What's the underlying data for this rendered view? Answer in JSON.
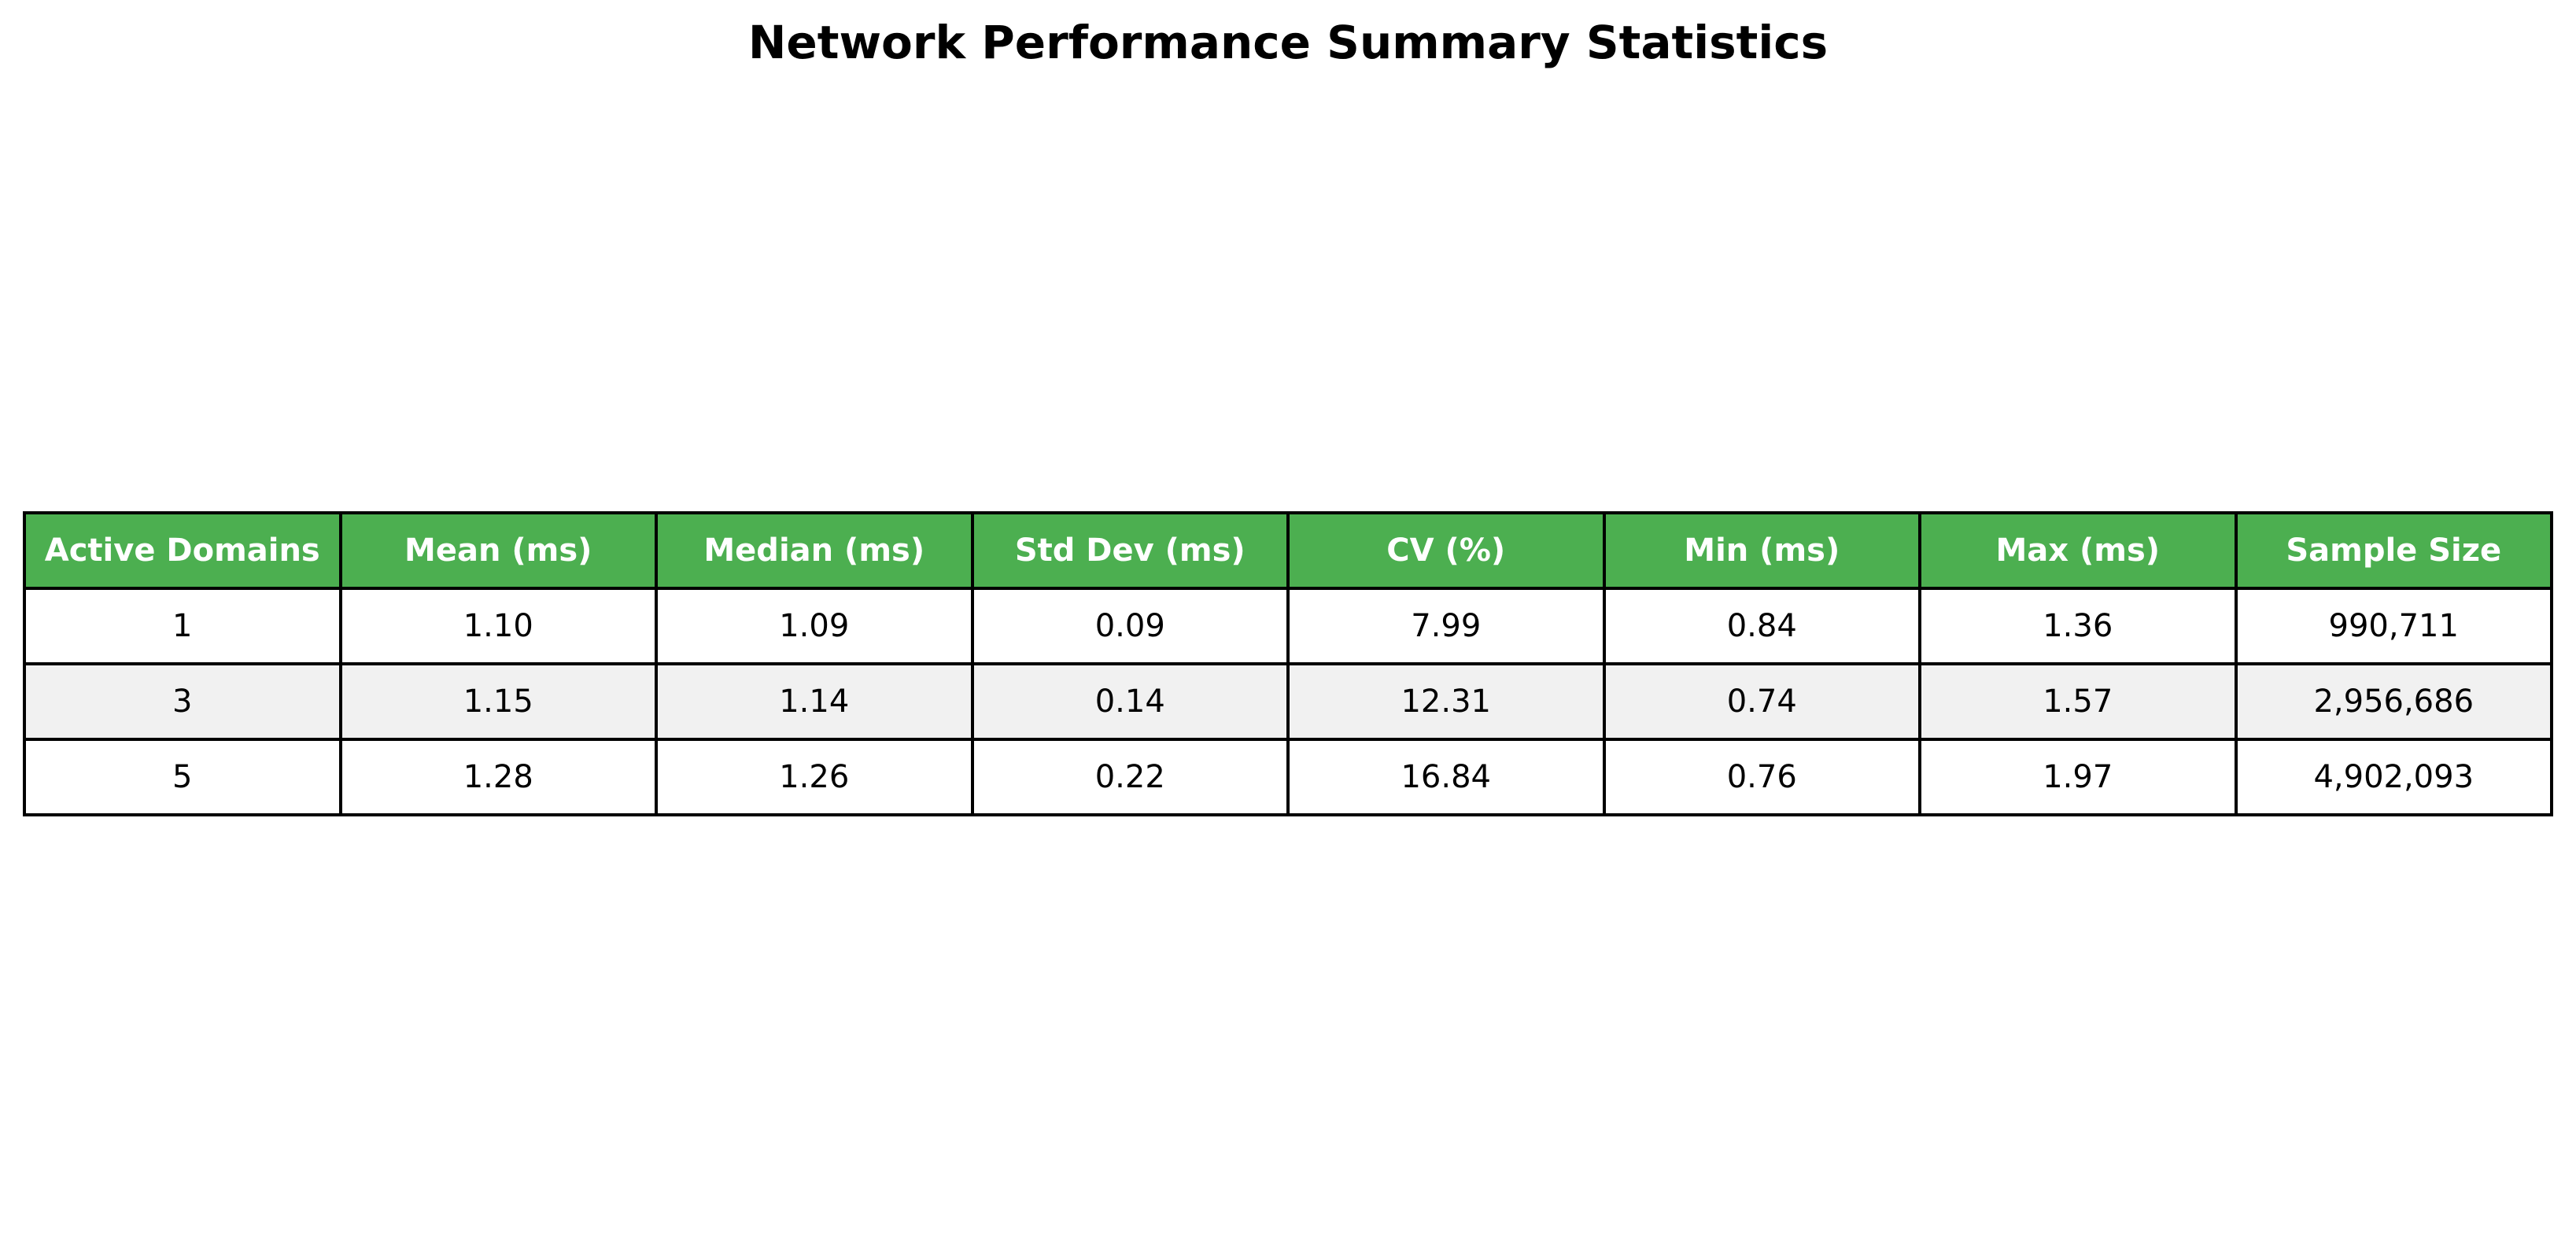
{
  "colors": {
    "header_bg": "#4CAF50",
    "header_text": "#ffffff",
    "row_odd_bg": "#ffffff",
    "row_even_bg": "#f1f1f1",
    "border": "#000000"
  },
  "chart_data": {
    "type": "table",
    "title": "Network Performance Summary Statistics",
    "columns": [
      "Active Domains",
      "Mean (ms)",
      "Median (ms)",
      "Std Dev (ms)",
      "CV (%)",
      "Min (ms)",
      "Max (ms)",
      "Sample Size"
    ],
    "rows": [
      [
        "1",
        "1.10",
        "1.09",
        "0.09",
        "7.99",
        "0.84",
        "1.36",
        "990,711"
      ],
      [
        "3",
        "1.15",
        "1.14",
        "0.14",
        "12.31",
        "0.74",
        "1.57",
        "2,956,686"
      ],
      [
        "5",
        "1.28",
        "1.26",
        "0.22",
        "16.84",
        "0.76",
        "1.97",
        "4,902,093"
      ]
    ]
  }
}
